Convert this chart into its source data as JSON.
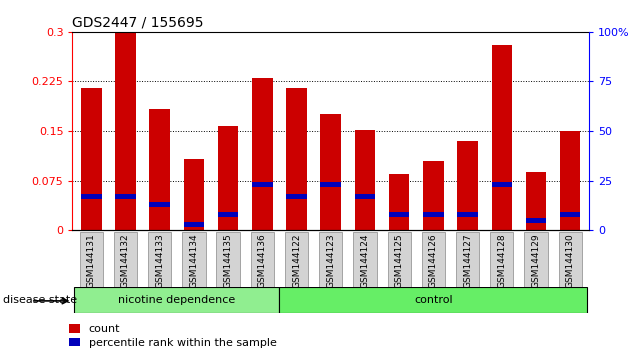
{
  "title": "GDS2447 / 155695",
  "categories": [
    "GSM144131",
    "GSM144132",
    "GSM144133",
    "GSM144134",
    "GSM144135",
    "GSM144136",
    "GSM144122",
    "GSM144123",
    "GSM144124",
    "GSM144125",
    "GSM144126",
    "GSM144127",
    "GSM144128",
    "GSM144129",
    "GSM144130"
  ],
  "count_values": [
    0.215,
    0.3,
    0.183,
    0.108,
    0.158,
    0.23,
    0.215,
    0.175,
    0.152,
    0.085,
    0.105,
    0.135,
    0.28,
    0.088,
    0.15
  ],
  "percentile_values": [
    17,
    17,
    13,
    3,
    8,
    23,
    17,
    23,
    17,
    8,
    8,
    8,
    23,
    5,
    8
  ],
  "group_labels": [
    "nicotine dependence",
    "control"
  ],
  "group_ranges": [
    [
      0,
      6
    ],
    [
      6,
      15
    ]
  ],
  "group_colors": [
    "#90EE90",
    "#66EE66"
  ],
  "bar_color": "#CC0000",
  "percentile_color": "#0000BB",
  "ylim_left": [
    0,
    0.3
  ],
  "ylim_right": [
    0,
    100
  ],
  "yticks_left": [
    0,
    0.075,
    0.15,
    0.225,
    0.3
  ],
  "ytick_labels_left": [
    "0",
    "0.075",
    "0.15",
    "0.225",
    "0.3"
  ],
  "yticks_right": [
    0,
    25,
    50,
    75,
    100
  ],
  "ytick_labels_right": [
    "0",
    "25",
    "50",
    "75",
    "100%"
  ],
  "disease_state_label": "disease state",
  "legend_items": [
    [
      "count",
      "#CC0000"
    ],
    [
      "percentile rank within the sample",
      "#0000BB"
    ]
  ],
  "bg_color": "#ffffff",
  "bar_width": 0.6
}
